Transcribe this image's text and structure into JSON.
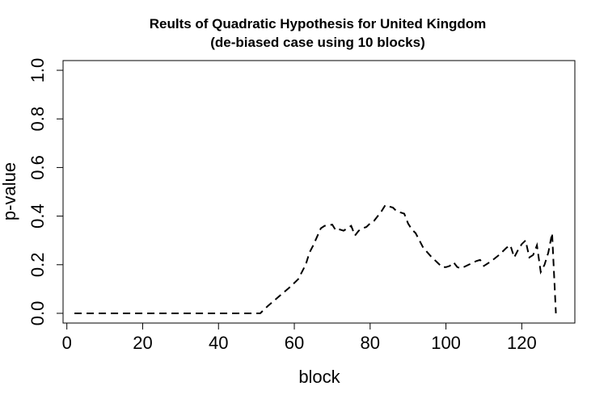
{
  "chart_data": {
    "type": "line",
    "title": "Reults of Quadratic Hypothesis for United Kingdom",
    "subtitle": "(de-biased case using 10 blocks)",
    "xlabel": "block",
    "ylabel": "p-value",
    "xlim": [
      -1,
      134
    ],
    "ylim": [
      -0.04,
      1.04
    ],
    "xticks": [
      0,
      20,
      40,
      60,
      80,
      100,
      120
    ],
    "yticks": [
      0.0,
      0.2,
      0.4,
      0.6,
      0.8,
      1.0
    ],
    "xtick_labels": [
      "0",
      "20",
      "40",
      "60",
      "80",
      "100",
      "120"
    ],
    "ytick_labels": [
      "0.0",
      "0.2",
      "0.4",
      "0.6",
      "0.8",
      "1.0"
    ],
    "line_style": "dashed",
    "line_color": "#000000",
    "grid": false,
    "x": [
      2,
      10,
      20,
      30,
      40,
      48,
      51,
      53,
      56,
      59,
      61,
      63,
      64,
      65,
      67,
      68,
      70,
      71,
      72,
      73,
      74,
      75,
      76,
      77,
      78,
      79,
      80,
      81,
      82,
      83,
      84,
      85,
      86,
      87,
      88,
      89,
      90,
      91,
      92,
      93,
      94,
      96,
      98,
      99,
      100,
      101,
      102,
      103,
      104,
      106,
      108,
      109,
      110,
      112,
      114,
      116,
      117,
      118,
      119,
      120,
      121,
      122,
      123,
      124,
      125,
      126,
      127,
      128,
      129
    ],
    "y": [
      0.0,
      0.0,
      0.0,
      0.0,
      0.0,
      0.0,
      0.0,
      0.03,
      0.07,
      0.11,
      0.14,
      0.2,
      0.25,
      0.28,
      0.35,
      0.36,
      0.365,
      0.34,
      0.345,
      0.34,
      0.35,
      0.36,
      0.32,
      0.34,
      0.35,
      0.355,
      0.37,
      0.38,
      0.4,
      0.42,
      0.445,
      0.44,
      0.435,
      0.42,
      0.415,
      0.41,
      0.37,
      0.345,
      0.33,
      0.3,
      0.27,
      0.235,
      0.205,
      0.19,
      0.19,
      0.195,
      0.21,
      0.19,
      0.185,
      0.2,
      0.215,
      0.22,
      0.195,
      0.215,
      0.24,
      0.27,
      0.28,
      0.23,
      0.26,
      0.285,
      0.3,
      0.23,
      0.24,
      0.28,
      0.17,
      0.2,
      0.25,
      0.33,
      0.0
    ]
  }
}
